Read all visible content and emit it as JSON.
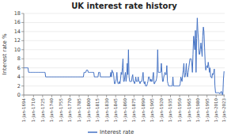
{
  "chart_data": {
    "type": "line",
    "title": "UK interest rate history",
    "ylabel": "Interest rate %",
    "x": [
      1694,
      1695,
      1696,
      1697,
      1698,
      1699,
      1700,
      1701,
      1702,
      1703,
      1704,
      1705,
      1706,
      1707,
      1708,
      1709,
      1710,
      1711,
      1712,
      1713,
      1714,
      1715,
      1716,
      1717,
      1718,
      1719,
      1720,
      1721,
      1722,
      1723,
      1724,
      1725,
      1726,
      1727,
      1728,
      1729,
      1730,
      1731,
      1732,
      1733,
      1734,
      1735,
      1736,
      1737,
      1738,
      1739,
      1740,
      1741,
      1742,
      1743,
      1744,
      1745,
      1746,
      1747,
      1748,
      1749,
      1750,
      1751,
      1752,
      1753,
      1754,
      1755,
      1756,
      1757,
      1758,
      1759,
      1760,
      1761,
      1762,
      1763,
      1764,
      1765,
      1766,
      1767,
      1768,
      1769,
      1770,
      1771,
      1772,
      1773,
      1774,
      1775,
      1776,
      1777,
      1778,
      1779,
      1780,
      1781,
      1782,
      1783,
      1784,
      1785,
      1786,
      1787,
      1788,
      1789,
      1790,
      1791,
      1792,
      1793,
      1794,
      1795,
      1796,
      1797,
      1798,
      1799,
      1800,
      1801,
      1802,
      1803,
      1804,
      1805,
      1806,
      1807,
      1808,
      1809,
      1810,
      1811,
      1812,
      1813,
      1814,
      1815,
      1816,
      1817,
      1818,
      1819,
      1820,
      1821,
      1822,
      1823,
      1824,
      1825,
      1826,
      1827,
      1828,
      1829,
      1830,
      1831,
      1832,
      1833,
      1834,
      1835,
      1836,
      1837,
      1838,
      1839,
      1840,
      1841,
      1842,
      1843,
      1844,
      1845,
      1846,
      1847,
      1848,
      1849,
      1850,
      1851,
      1852,
      1853,
      1854,
      1855,
      1856,
      1857,
      1858,
      1859,
      1860,
      1861,
      1862,
      1863,
      1864,
      1865,
      1866,
      1867,
      1868,
      1869,
      1870,
      1871,
      1872,
      1873,
      1874,
      1875,
      1876,
      1877,
      1878,
      1879,
      1880,
      1881,
      1882,
      1883,
      1884,
      1885,
      1886,
      1887,
      1888,
      1889,
      1890,
      1891,
      1892,
      1893,
      1894,
      1895,
      1896,
      1897,
      1898,
      1899,
      1900,
      1901,
      1902,
      1903,
      1904,
      1905,
      1906,
      1907,
      1908,
      1909,
      1910,
      1911,
      1912,
      1913,
      1914,
      1915,
      1916,
      1917,
      1918,
      1919,
      1920,
      1921,
      1922,
      1923,
      1924,
      1925,
      1926,
      1927,
      1928,
      1929,
      1930,
      1931,
      1932,
      1933,
      1934,
      1935,
      1936,
      1937,
      1938,
      1939,
      1940,
      1941,
      1942,
      1943,
      1944,
      1945,
      1946,
      1947,
      1948,
      1949,
      1950,
      1951,
      1952,
      1953,
      1954,
      1955,
      1956,
      1957,
      1958,
      1959,
      1960,
      1961,
      1962,
      1963,
      1964,
      1965,
      1966,
      1967,
      1968,
      1969,
      1970,
      1971,
      1972,
      1973,
      1974,
      1975,
      1976,
      1977,
      1978,
      1979,
      1980,
      1981,
      1982,
      1983,
      1984,
      1985,
      1986,
      1987,
      1988,
      1989,
      1990,
      1991,
      1992,
      1993,
      1994,
      1995,
      1996,
      1997,
      1998,
      1999,
      2000,
      2001,
      2002,
      2003,
      2004,
      2005,
      2006,
      2007,
      2008,
      2009,
      2010,
      2011,
      2012,
      2013,
      2014,
      2015,
      2016,
      2017,
      2018,
      2019,
      2020,
      2021,
      2022,
      2023
    ],
    "series": [
      {
        "name": "Interest rate",
        "color": "#4472c4",
        "values": [
          6.0,
          6.0,
          6.0,
          6.0,
          6.0,
          6.0,
          6.0,
          6.0,
          5.0,
          5.0,
          5.0,
          5.0,
          5.0,
          5.0,
          5.0,
          5.0,
          5.0,
          5.0,
          5.0,
          5.0,
          5.0,
          5.0,
          5.0,
          5.0,
          5.0,
          5.0,
          5.0,
          5.0,
          5.0,
          5.0,
          5.0,
          5.0,
          5.0,
          5.0,
          5.0,
          5.0,
          4.0,
          4.0,
          4.0,
          4.0,
          4.0,
          4.0,
          4.0,
          4.0,
          4.0,
          4.0,
          4.0,
          4.0,
          4.0,
          4.0,
          4.0,
          4.0,
          4.0,
          4.0,
          4.0,
          4.0,
          4.0,
          4.0,
          4.0,
          4.0,
          4.0,
          4.0,
          4.0,
          4.0,
          4.0,
          4.0,
          4.0,
          4.0,
          4.0,
          4.0,
          4.0,
          4.0,
          4.0,
          4.0,
          4.0,
          4.0,
          4.0,
          4.0,
          4.0,
          4.0,
          4.0,
          4.0,
          4.0,
          4.0,
          4.0,
          4.0,
          4.0,
          4.0,
          4.0,
          4.0,
          4.0,
          4.0,
          4.0,
          4.0,
          4.0,
          4.0,
          4.0,
          4.0,
          4.0,
          5.0,
          5.0,
          5.0,
          5.0,
          5.5,
          5.5,
          5.5,
          5.0,
          5.0,
          5.0,
          5.0,
          5.0,
          5.0,
          5.0,
          5.0,
          5.0,
          5.0,
          4.0,
          4.0,
          4.0,
          4.0,
          4.0,
          4.0,
          4.0,
          5.0,
          5.0,
          5.0,
          4.0,
          4.0,
          4.0,
          4.0,
          4.0,
          4.0,
          4.0,
          4.0,
          4.0,
          4.0,
          4.0,
          4.0,
          4.0,
          4.0,
          4.0,
          4.0,
          4.0,
          5.0,
          4.0,
          5.5,
          5.0,
          5.0,
          4.0,
          2.5,
          2.5,
          3.0,
          3.5,
          5.0,
          3.0,
          2.5,
          2.5,
          3.0,
          2.5,
          3.5,
          5.0,
          4.5,
          6.0,
          8.0,
          3.0,
          3.0,
          4.0,
          5.0,
          3.0,
          4.0,
          7.0,
          4.5,
          10.0,
          4.0,
          3.0,
          3.0,
          3.0,
          3.0,
          4.0,
          4.5,
          3.0,
          3.0,
          2.5,
          3.0,
          4.0,
          3.0,
          3.0,
          3.0,
          4.0,
          3.0,
          3.0,
          2.5,
          3.0,
          3.0,
          3.0,
          4.0,
          5.0,
          3.0,
          2.5,
          3.0,
          2.0,
          2.0,
          2.0,
          2.5,
          3.0,
          4.0,
          4.0,
          3.5,
          3.0,
          3.5,
          3.0,
          3.0,
          4.0,
          5.0,
          2.5,
          2.5,
          3.0,
          3.0,
          3.5,
          4.5,
          10.0,
          5.0,
          5.0,
          5.0,
          5.0,
          5.0,
          7.0,
          5.0,
          3.0,
          3.0,
          4.0,
          4.5,
          5.0,
          4.5,
          4.5,
          6.5,
          3.0,
          2.5,
          2.0,
          2.0,
          2.0,
          2.0,
          2.0,
          2.0,
          2.0,
          4.0,
          2.0,
          2.0,
          2.0,
          2.0,
          2.0,
          2.0,
          2.0,
          2.0,
          2.0,
          2.0,
          2.0,
          2.5,
          4.0,
          3.5,
          3.0,
          4.5,
          5.5,
          7.0,
          4.0,
          4.0,
          5.0,
          7.0,
          4.5,
          4.0,
          5.0,
          6.0,
          7.0,
          8.0,
          8.0,
          8.0,
          7.0,
          5.0,
          9.0,
          13.0,
          11.5,
          10.0,
          14.25,
          5.0,
          12.5,
          17.0,
          14.0,
          12.0,
          9.0,
          9.0,
          10.0,
          11.5,
          10.0,
          8.5,
          13.0,
          15.0,
          14.0,
          10.5,
          7.0,
          5.5,
          6.25,
          6.5,
          6.0,
          7.25,
          6.25,
          5.0,
          6.0,
          4.0,
          4.0,
          3.75,
          4.75,
          4.5,
          5.0,
          5.75,
          2.0,
          0.5,
          0.5,
          0.5,
          0.5,
          0.5,
          0.5,
          0.5,
          0.25,
          0.5,
          0.75,
          0.75,
          0.1,
          0.1,
          3.5,
          5.25
        ]
      }
    ],
    "xlim": [
      1694,
      2024
    ],
    "xticks": [
      {
        "value": 1694,
        "label": "1-Jan-1694"
      },
      {
        "value": 1710,
        "label": "1-Jan-1710"
      },
      {
        "value": 1725,
        "label": "1-Jan-1725"
      },
      {
        "value": 1740,
        "label": "1-Jan-1740"
      },
      {
        "value": 1755,
        "label": "1-Jan-1755"
      },
      {
        "value": 1770,
        "label": "1-Jan-1770"
      },
      {
        "value": 1785,
        "label": "1-Jan-1785"
      },
      {
        "value": 1800,
        "label": "1-Jan-1800"
      },
      {
        "value": 1815,
        "label": "1-Jan-1815"
      },
      {
        "value": 1830,
        "label": "1-Jan-1830"
      },
      {
        "value": 1845,
        "label": "1-Jan-1845"
      },
      {
        "value": 1860,
        "label": "1-Jan-1860"
      },
      {
        "value": 1875,
        "label": "1-Jan-1875"
      },
      {
        "value": 1890,
        "label": "1-Jan-1890"
      },
      {
        "value": 1905,
        "label": "1-Jan-1905"
      },
      {
        "value": 1920,
        "label": "1-Jan-1920"
      },
      {
        "value": 1935,
        "label": "1-Jan-1935"
      },
      {
        "value": 1950,
        "label": "1-Jan-1950"
      },
      {
        "value": 1965,
        "label": "1-Jan-1965"
      },
      {
        "value": 1980,
        "label": "1-Jan-1980"
      },
      {
        "value": 1995,
        "label": "1-Jan-1995"
      },
      {
        "value": 2010,
        "label": "1-Jan-2010"
      },
      {
        "value": 2023,
        "label": "1-Jan-2023"
      }
    ],
    "ylim": [
      0,
      18
    ],
    "yticks": [
      0,
      2,
      4,
      6,
      8,
      10,
      12,
      14,
      16,
      18
    ],
    "grid": true,
    "legend": "bottom"
  }
}
